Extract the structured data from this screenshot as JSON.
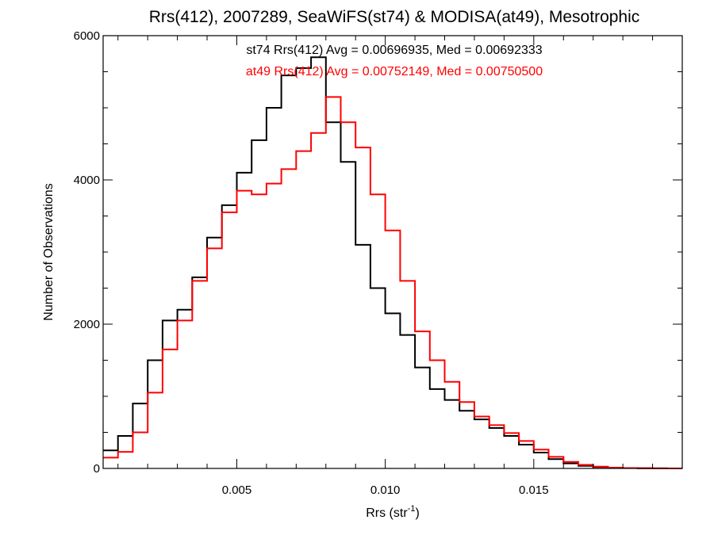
{
  "chart_data": {
    "type": "histogram-step",
    "title": "Rrs(412), 2007289, SeaWiFS(st74) & MODISA(at49), Mesotrophic",
    "xlabel": "Rrs (str",
    "xlabel_superscript": "-1",
    "xlabel_close": ")",
    "ylabel": "Number of Observations",
    "xlim": [
      0.0005,
      0.02
    ],
    "ylim": [
      0,
      6000
    ],
    "x_ticks": [
      0.005,
      0.01,
      0.015
    ],
    "x_tick_labels": [
      "0.005",
      "0.010",
      "0.015"
    ],
    "y_ticks": [
      0,
      2000,
      4000,
      6000
    ],
    "y_tick_labels": [
      "0",
      "2000",
      "4000",
      "6000"
    ],
    "x_minor_step": 0.001,
    "y_minor_step": 500,
    "grid": false,
    "annotations": [
      {
        "text": "st74 Rrs(412) Avg = 0.00696935, Med = 0.00692333",
        "color": "#000000"
      },
      {
        "text": "at49 Rrs(412) Avg = 0.00752149, Med = 0.00750500",
        "color": "#ff0000"
      }
    ],
    "series": [
      {
        "color": "#000000",
        "x": [
          0.0005,
          0.001,
          0.0015,
          0.002,
          0.0025,
          0.003,
          0.0035,
          0.004,
          0.0045,
          0.005,
          0.0055,
          0.006,
          0.0065,
          0.007,
          0.0075,
          0.008,
          0.0085,
          0.009,
          0.0095,
          0.01,
          0.0105,
          0.011,
          0.0115,
          0.012,
          0.0125,
          0.013,
          0.0135,
          0.014,
          0.0145,
          0.015,
          0.0155,
          0.016,
          0.0165,
          0.017,
          0.0175,
          0.018,
          0.0185,
          0.019,
          0.0195,
          0.02
        ],
        "y": [
          250,
          450,
          900,
          1500,
          2050,
          2200,
          2650,
          3200,
          3650,
          4100,
          4550,
          5000,
          5450,
          5550,
          5700,
          4800,
          4250,
          3100,
          2500,
          2150,
          1850,
          1400,
          1100,
          950,
          800,
          680,
          560,
          450,
          330,
          220,
          130,
          70,
          35,
          20,
          10,
          5,
          2,
          1,
          0,
          0
        ]
      },
      {
        "color": "#ff0000",
        "x": [
          0.0005,
          0.001,
          0.0015,
          0.002,
          0.0025,
          0.003,
          0.0035,
          0.004,
          0.0045,
          0.005,
          0.0055,
          0.006,
          0.0065,
          0.007,
          0.0075,
          0.008,
          0.0085,
          0.009,
          0.0095,
          0.01,
          0.0105,
          0.011,
          0.0115,
          0.012,
          0.0125,
          0.013,
          0.0135,
          0.014,
          0.0145,
          0.015,
          0.0155,
          0.016,
          0.0165,
          0.017,
          0.0175,
          0.018,
          0.0185,
          0.019,
          0.0195,
          0.02
        ],
        "y": [
          150,
          230,
          500,
          1050,
          1650,
          2050,
          2600,
          3050,
          3550,
          3850,
          3800,
          3950,
          4150,
          4400,
          4650,
          5150,
          4800,
          4450,
          3800,
          3300,
          2600,
          1900,
          1500,
          1200,
          920,
          720,
          600,
          490,
          380,
          260,
          160,
          90,
          50,
          25,
          10,
          5,
          2,
          1,
          0,
          0
        ]
      }
    ]
  }
}
